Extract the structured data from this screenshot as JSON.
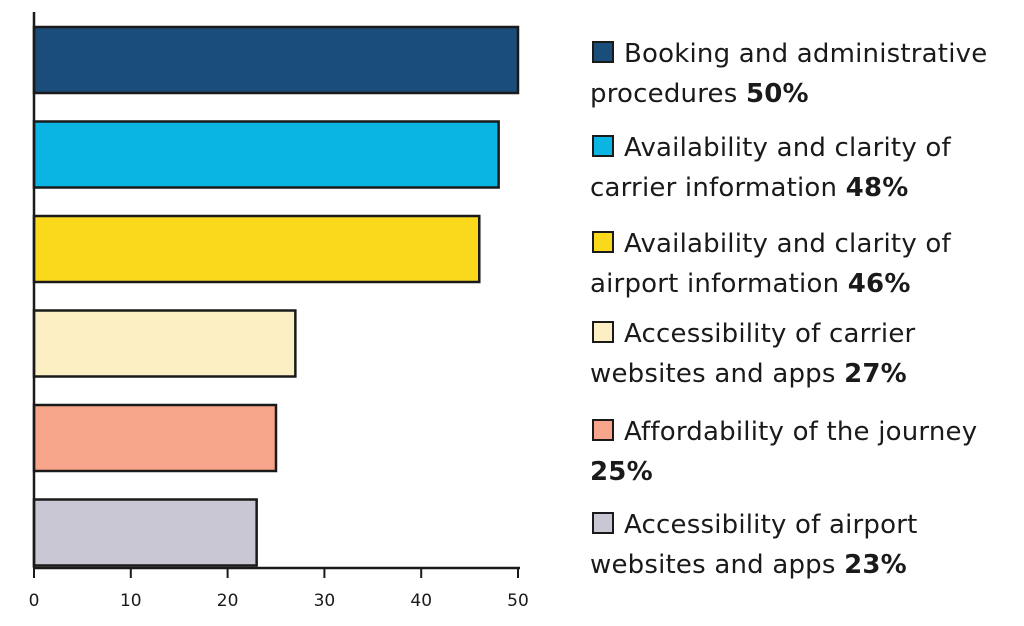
{
  "chart_data": {
    "type": "bar",
    "orientation": "horizontal",
    "categories": [
      "Booking and administrative procedures",
      "Availability and clarity of carrier information",
      "Availability and clarity of airport information",
      "Accessibility of carrier websites and apps",
      "Affordability of the journey",
      "Accessibility of airport websites and apps"
    ],
    "values": [
      50,
      48,
      46,
      27,
      25,
      23
    ],
    "percent_labels": [
      "50%",
      "48%",
      "46%",
      "27%",
      "25%",
      "23%"
    ],
    "colors": [
      "#1b4d7a",
      "#0bb5e3",
      "#fad81c",
      "#fcefc4",
      "#f7a58a",
      "#c8c7d3"
    ],
    "xlim": [
      0,
      50
    ],
    "xticks": [
      0,
      10,
      20,
      30,
      40,
      50
    ],
    "xtick_labels": [
      "0",
      "10",
      "20",
      "30",
      "40",
      "50"
    ],
    "legend_position": "right",
    "grid": false,
    "title": "",
    "xlabel": "",
    "ylabel": ""
  }
}
